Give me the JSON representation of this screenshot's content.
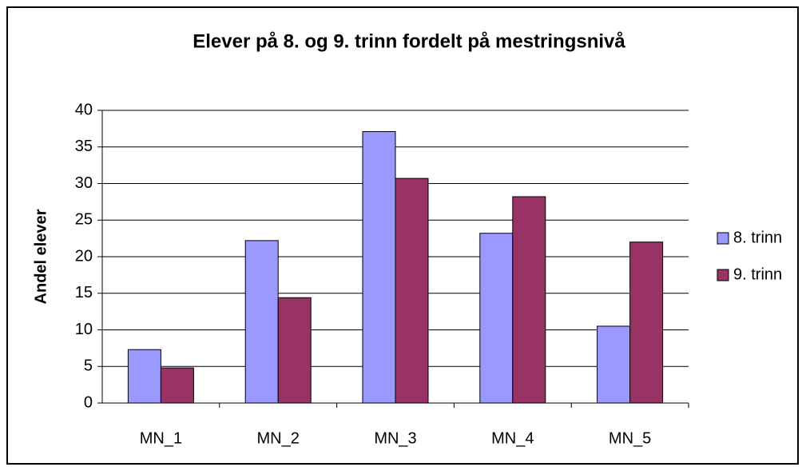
{
  "chart_data": {
    "type": "bar",
    "title": "Elever på 8. og 9. trinn fordelt på mestringsnivå",
    "y_label": "Andel elever",
    "categories": [
      "MN_1",
      "MN_2",
      "MN_3",
      "MN_4",
      "MN_5"
    ],
    "series": [
      {
        "name": "8. trinn",
        "color": "#9999ff",
        "values": [
          7.3,
          22.2,
          37.1,
          23.2,
          10.5
        ]
      },
      {
        "name": "9. trinn",
        "color": "#993366",
        "values": [
          4.8,
          14.4,
          30.7,
          28.2,
          22.0
        ]
      }
    ],
    "ylim": [
      0,
      40
    ],
    "yticks": [
      0,
      5,
      10,
      15,
      20,
      25,
      30,
      35,
      40
    ],
    "grid": true,
    "legend": "right"
  }
}
